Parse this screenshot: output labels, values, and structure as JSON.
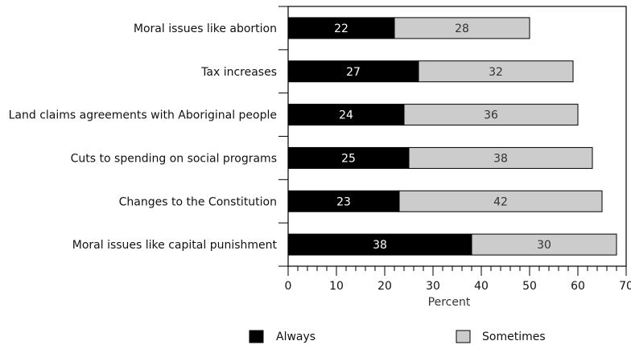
{
  "chart_data": {
    "type": "bar",
    "orientation": "horizontal",
    "stacked": true,
    "categories": [
      "Moral issues like abortion",
      "Tax increases",
      "Land claims agreements with Aboriginal people",
      "Cuts to  spending on social programs",
      "Changes to the Constitution",
      "Moral issues  like capital punishment"
    ],
    "series": [
      {
        "name": "Always",
        "values": [
          22,
          27,
          24,
          25,
          23,
          38
        ],
        "color": "#000000",
        "label_color": "#ffffff"
      },
      {
        "name": "Sometimes",
        "values": [
          28,
          32,
          36,
          38,
          42,
          30
        ],
        "color": "#cccccc",
        "label_color": "#333333"
      }
    ],
    "xlabel": "Percent",
    "ylabel": "",
    "title": "",
    "xlim": [
      0,
      70
    ],
    "xticks": [
      0,
      10,
      20,
      30,
      40,
      50,
      60,
      70
    ],
    "minor_tick_step": 2,
    "grid": false,
    "legend_position": "bottom"
  }
}
